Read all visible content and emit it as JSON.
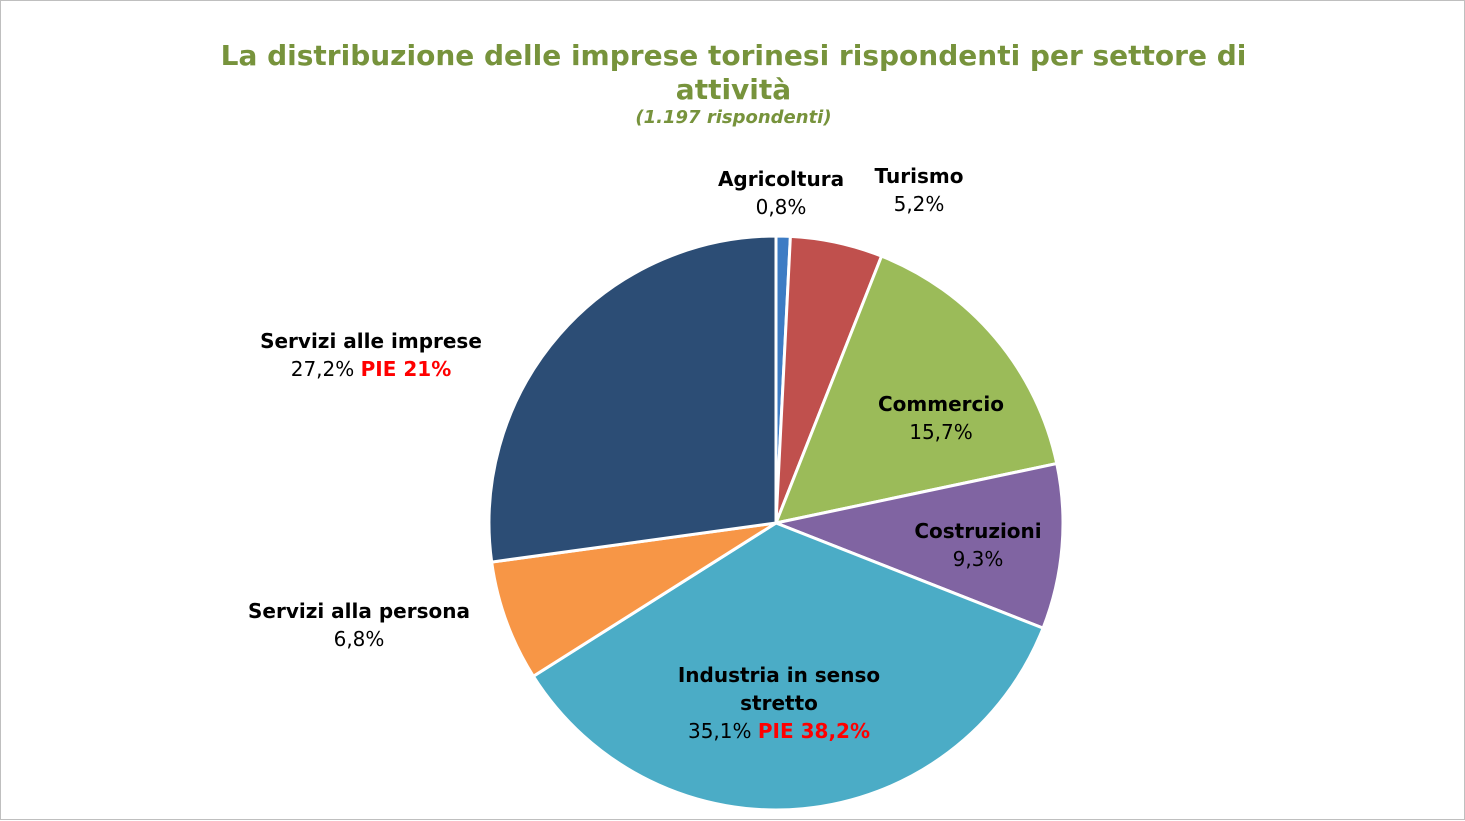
{
  "chart_data": {
    "type": "pie",
    "title": "La distribuzione delle imprese torinesi rispondenti per settore di attività",
    "subtitle": "(1.197 rispondenti)",
    "categories": [
      "Agricoltura",
      "Turismo",
      "Commercio",
      "Costruzioni",
      "Industria in senso stretto",
      "Servizi alla persona",
      "Servizi alle imprese"
    ],
    "values": [
      0.8,
      5.2,
      15.7,
      9.3,
      35.1,
      6.8,
      27.2
    ],
    "value_labels": [
      "0,8%",
      "5,2%",
      "15,7%",
      "9,3%",
      "35,1%",
      "6,8%",
      "27,2%"
    ],
    "value_notes": [
      null,
      null,
      null,
      null,
      "PIE 38,2%",
      null,
      "PIE 21%"
    ],
    "colors": [
      "#3d7cc4",
      "#c0504d",
      "#9bbb59",
      "#8064a2",
      "#4bacc6",
      "#f79646",
      "#2c4d75"
    ]
  }
}
